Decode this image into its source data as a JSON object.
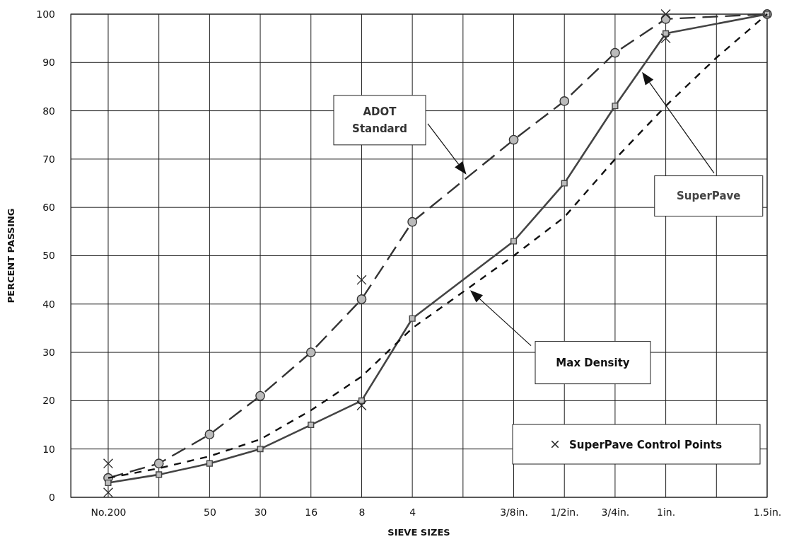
{
  "chart_data": {
    "type": "line",
    "xlabel": "SIEVE SIZES",
    "ylabel": "PERCENT PASSING",
    "categories": [
      "No.200",
      null,
      "50",
      "30",
      "16",
      "8",
      "4",
      null,
      "3/8in.",
      "1/2in.",
      "3/4in.",
      "1in.",
      null,
      "1.5in."
    ],
    "ylim": [
      0,
      100
    ],
    "yticks": [
      0,
      10,
      20,
      30,
      40,
      50,
      60,
      70,
      80,
      90,
      100
    ],
    "grid": true,
    "legend": "bottom right",
    "series": [
      {
        "name": "ADOT Standard",
        "color": "#333333",
        "marker": "circle",
        "line_style": "dashed",
        "values": [
          4,
          7,
          13,
          21,
          30,
          41,
          57,
          null,
          74,
          82,
          92,
          99,
          null,
          100
        ]
      },
      {
        "name": "SuperPave",
        "color": "#444444",
        "marker": "square",
        "line_style": "solid",
        "values": [
          3,
          4.7,
          7,
          10,
          15,
          20,
          37,
          null,
          53,
          65,
          81,
          96,
          null,
          100
        ]
      },
      {
        "name": "Max Density",
        "color": "#111111",
        "marker": "none",
        "line_style": "dashed",
        "values": [
          4,
          6,
          8.5,
          12,
          18,
          25,
          35,
          null,
          50,
          58,
          70,
          81,
          91,
          100
        ]
      },
      {
        "name": "SuperPave Control Points",
        "type": "scatter",
        "color": "#222222",
        "marker": "cross",
        "x": [
          "No.200",
          "No.200",
          "8",
          "8",
          "1in.",
          "1in."
        ],
        "values": [
          1,
          7,
          19,
          45,
          95,
          100
        ]
      }
    ]
  }
}
